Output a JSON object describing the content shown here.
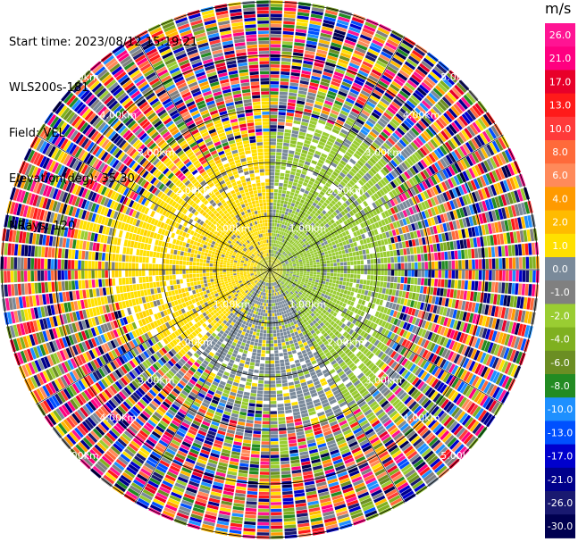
{
  "info": {
    "start_time": "Start time: 2023/08/12 15:19:21",
    "instrument": "WLS200s-181",
    "field": "Field: VEL",
    "elevation": "Elevation(deg): 35.30",
    "nrays": "NRays: 120"
  },
  "colorbar": {
    "unit": "m/s",
    "ticks": [
      "26.0",
      "21.0",
      "17.0",
      "13.0",
      "10.0",
      "8.0",
      "6.0",
      "4.0",
      "2.0",
      "1.0",
      "0.0",
      "-1.0",
      "-2.0",
      "-4.0",
      "-6.0",
      "-8.0",
      "-10.0",
      "-13.0",
      "-17.0",
      "-21.0",
      "-26.0",
      "-30.0"
    ],
    "colors": [
      "#ff1493",
      "#ff0080",
      "#e8002a",
      "#ff1a1a",
      "#ff3a3a",
      "#ff6a3a",
      "#ff8a5a",
      "#ff9a00",
      "#ffbb00",
      "#ffe000",
      "#7a8a9a",
      "#808080",
      "#9acd32",
      "#7fb020",
      "#6b8e23",
      "#228b22",
      "#1e90ff",
      "#0050ff",
      "#0000cd",
      "#00008b",
      "#191970",
      "#000050"
    ]
  },
  "chart_data": {
    "type": "heatmap",
    "title": "",
    "field": "VEL",
    "elevation_deg": 35.3,
    "nrays": 120,
    "range_ring_labels": [
      "1.00km",
      "2.00km",
      "3.00km",
      "4.00km",
      "5.00km"
    ],
    "range_rings_km": [
      1,
      2,
      3,
      4,
      5
    ],
    "scan": "PPI",
    "value_range": [
      -30,
      26
    ],
    "unit": "m/s",
    "pattern": "near range (<~2.5 km): yellow (~1 m/s) to NW/W, grey (~0 m/s) to S, green (~-2 m/s) to E/SE; far range: noise with random velocities"
  }
}
